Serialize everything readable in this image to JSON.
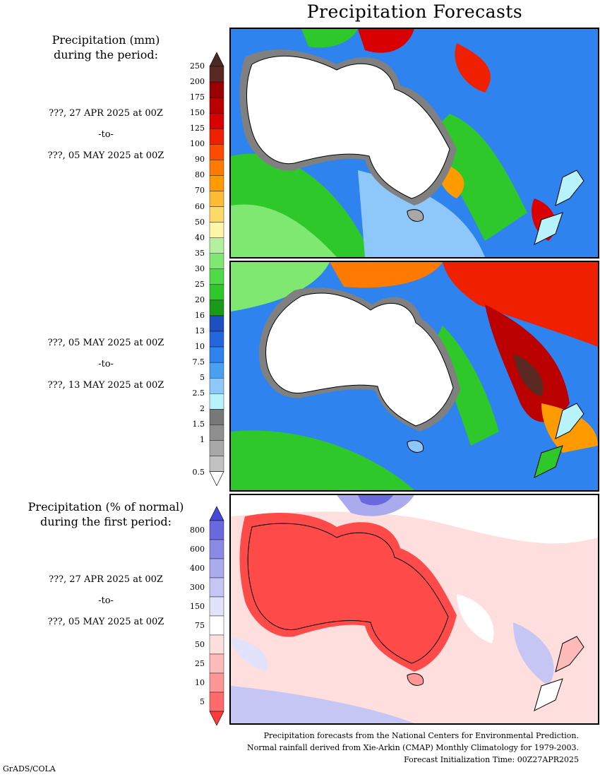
{
  "title": "Precipitation Forecasts",
  "panel1": {
    "heading_line1": "Precipitation (mm)",
    "heading_line2": "during the period:",
    "start": "???, 27 APR 2025 at 00Z",
    "sep": "-to-",
    "end": "???, 05 MAY 2025 at 00Z"
  },
  "panel2": {
    "start": "???, 05 MAY 2025 at 00Z",
    "sep": "-to-",
    "end": "???, 13 MAY 2025 at 00Z"
  },
  "panel3": {
    "heading_line1": "Precipitation (% of normal)",
    "heading_line2": "during the first period:",
    "start": "???, 27 APR 2025 at 00Z",
    "sep": "-to-",
    "end": "???, 05 MAY 2025 at 00Z"
  },
  "precip_scale": {
    "labels": [
      "250",
      "200",
      "175",
      "150",
      "125",
      "100",
      "90",
      "80",
      "70",
      "60",
      "50",
      "40",
      "35",
      "30",
      "25",
      "20",
      "16",
      "13",
      "10",
      "7.5",
      "5",
      "2.5",
      "2",
      "1.5",
      "1",
      "0.5"
    ],
    "colors": [
      "#5a2a22",
      "#9b0000",
      "#bb0000",
      "#d80000",
      "#ee2000",
      "#ff4a00",
      "#ff7a00",
      "#ff9a00",
      "#ffbb33",
      "#ffd966",
      "#fff5a8",
      "#b5f0a0",
      "#7ee870",
      "#4fdb48",
      "#2ec82a",
      "#1a9a18",
      "#1d4fc0",
      "#2366dd",
      "#2f83ee",
      "#4aa0f0",
      "#8ec8fa",
      "#b8f2fb",
      "#787878",
      "#8f8f8f",
      "#a8a8a8",
      "#c2c2c2"
    ],
    "over_color": "#4a2a22",
    "under_color": "#ffffff"
  },
  "percent_scale": {
    "labels": [
      "800",
      "600",
      "400",
      "300",
      "150",
      "75",
      "50",
      "25",
      "10",
      "5"
    ],
    "colors": [
      "#6a6ade",
      "#8a8ae6",
      "#aaaaee",
      "#c6c6f4",
      "#e2e2fa",
      "#ffffff",
      "#ffdede",
      "#ffbaba",
      "#ff9696",
      "#ff6a6a"
    ],
    "over_color": "#4848d8",
    "under_color": "#ff3a3a"
  },
  "footer": {
    "line1": "Precipitation forecasts from the National Centers for Environmental Prediction.",
    "line2": "Normal rainfall derived from Xie-Arkin (CMAP) Monthly Climatology for 1979-2003.",
    "line3": "Forecast Initialization Time: 00Z27APR2025"
  },
  "credit": "GrADS/COLA"
}
